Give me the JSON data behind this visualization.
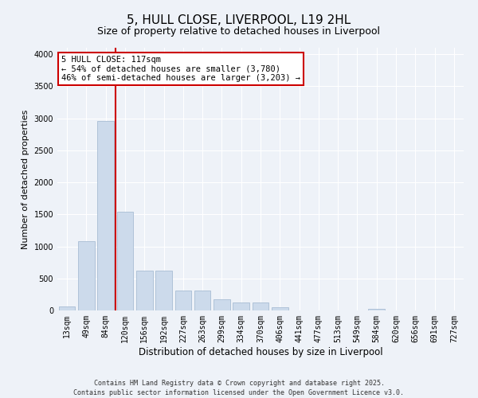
{
  "title": "5, HULL CLOSE, LIVERPOOL, L19 2HL",
  "subtitle": "Size of property relative to detached houses in Liverpool",
  "xlabel": "Distribution of detached houses by size in Liverpool",
  "ylabel": "Number of detached properties",
  "categories": [
    "13sqm",
    "49sqm",
    "84sqm",
    "120sqm",
    "156sqm",
    "192sqm",
    "227sqm",
    "263sqm",
    "299sqm",
    "334sqm",
    "370sqm",
    "406sqm",
    "441sqm",
    "477sqm",
    "513sqm",
    "549sqm",
    "584sqm",
    "620sqm",
    "656sqm",
    "691sqm",
    "727sqm"
  ],
  "values": [
    60,
    1080,
    2960,
    1540,
    620,
    620,
    310,
    310,
    180,
    120,
    120,
    45,
    0,
    0,
    0,
    0,
    30,
    0,
    0,
    0,
    0
  ],
  "bar_color": "#ccdaeb",
  "bar_edge_color": "#a8bdd4",
  "vline_color": "#cc0000",
  "vline_pos": 2.5,
  "annotation_text": "5 HULL CLOSE: 117sqm\n← 54% of detached houses are smaller (3,780)\n46% of semi-detached houses are larger (3,203) →",
  "annotation_box_color": "#ffffff",
  "annotation_box_edge_color": "#cc0000",
  "ylim": [
    0,
    4100
  ],
  "yticks": [
    0,
    500,
    1000,
    1500,
    2000,
    2500,
    3000,
    3500,
    4000
  ],
  "footnote": "Contains HM Land Registry data © Crown copyright and database right 2025.\nContains public sector information licensed under the Open Government Licence v3.0.",
  "bg_color": "#eef2f8",
  "plot_bg_color": "#eef2f8",
  "grid_color": "#ffffff",
  "title_fontsize": 11,
  "subtitle_fontsize": 9,
  "xlabel_fontsize": 8.5,
  "ylabel_fontsize": 8,
  "tick_fontsize": 7,
  "footnote_fontsize": 6,
  "ann_fontsize": 7.5
}
